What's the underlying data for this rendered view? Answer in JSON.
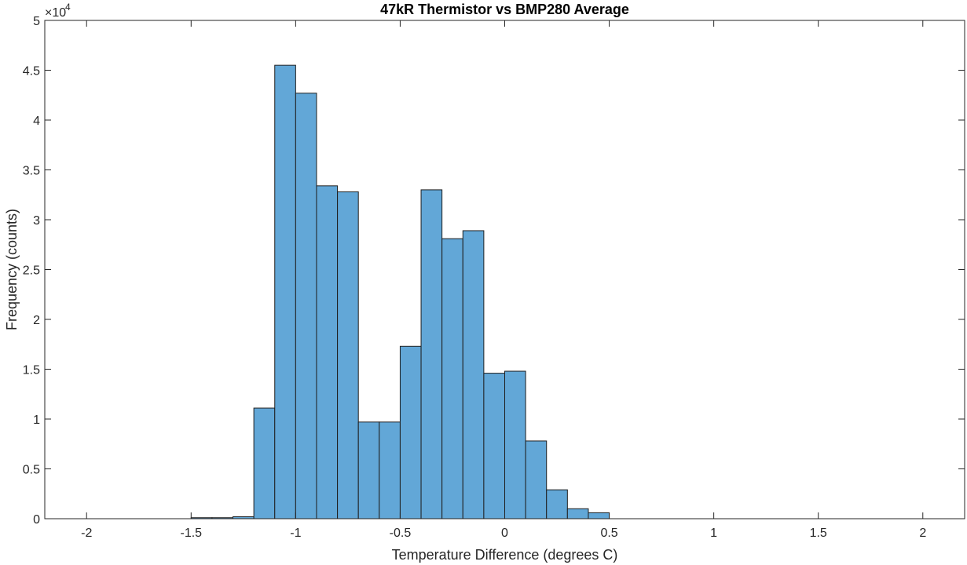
{
  "chart_data": {
    "type": "bar",
    "title": "47kR Thermistor vs BMP280 Average",
    "xlabel": "Temperature Difference (degrees C)",
    "ylabel": "Frequency (counts)",
    "y_exponent_label": "×10",
    "y_exponent_power": "4",
    "xlim": [
      -2.2,
      2.2
    ],
    "ylim": [
      0,
      5
    ],
    "x_ticks": [
      -2,
      -1.5,
      -1,
      -0.5,
      0,
      0.5,
      1,
      1.5,
      2
    ],
    "x_tick_labels": [
      "-2",
      "-1.5",
      "-1",
      "-0.5",
      "0",
      "0.5",
      "1",
      "1.5",
      "2"
    ],
    "y_ticks": [
      0,
      0.5,
      1,
      1.5,
      2,
      2.5,
      3,
      3.5,
      4,
      4.5,
      5
    ],
    "y_tick_labels": [
      "0",
      "0.5",
      "1",
      "1.5",
      "2",
      "2.5",
      "3",
      "3.5",
      "4",
      "4.5",
      "5"
    ],
    "bin_edges": [
      -1.5,
      -1.4,
      -1.3,
      -1.2,
      -1.1,
      -1.0,
      -0.9,
      -0.8,
      -0.7,
      -0.6,
      -0.5,
      -0.4,
      -0.3,
      -0.2,
      -0.1,
      0.0,
      0.1,
      0.2,
      0.3,
      0.4,
      0.5
    ],
    "values": [
      0.01,
      0.01,
      0.02,
      1.11,
      4.55,
      4.27,
      3.34,
      3.28,
      0.97,
      0.97,
      1.73,
      3.3,
      2.81,
      2.89,
      1.46,
      1.48,
      0.78,
      0.29,
      0.1,
      0.06
    ],
    "bar_color": "#62a7d7",
    "edge_color": "#1f1f1f",
    "grid": false
  }
}
